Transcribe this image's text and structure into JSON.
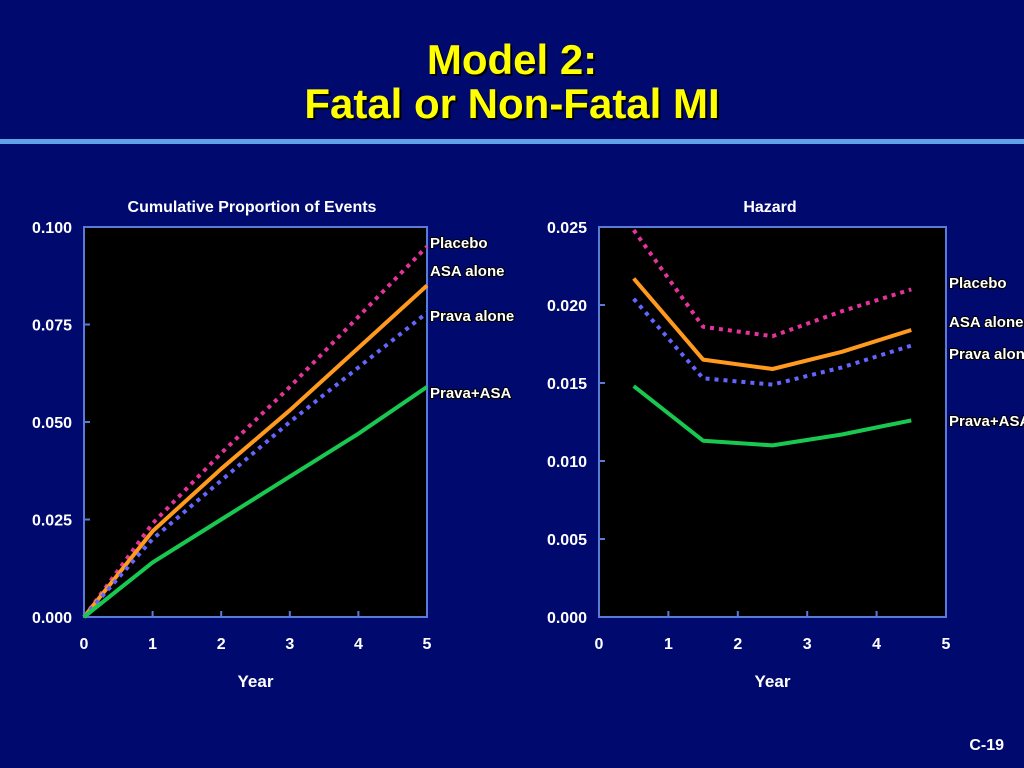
{
  "slide": {
    "title_line1": "Model 2:",
    "title_line2": "Fatal or Non-Fatal MI",
    "footer": "C-19"
  },
  "colors": {
    "background": "#000a6e",
    "plot_background": "#000000",
    "title": "#ffff00",
    "rule": "#5ea2e8",
    "placebo": "#e6329b",
    "asa_alone": "#ff9a1f",
    "prava_alone": "#6464ff",
    "prava_asa": "#19c850"
  },
  "chart_data": [
    {
      "type": "line",
      "title": "Cumulative Proportion of Events",
      "xlabel": "Year",
      "ylabel": "",
      "xlim": [
        0,
        5
      ],
      "ylim": [
        0,
        0.1
      ],
      "x_ticks": [
        "0",
        "1",
        "2",
        "3",
        "4",
        "5"
      ],
      "y_ticks": [
        "0.000",
        "0.025",
        "0.050",
        "0.075",
        "0.100"
      ],
      "series": [
        {
          "name": "Placebo",
          "color_key": "placebo",
          "dash": true,
          "x": [
            0,
            1,
            2,
            3,
            4,
            5
          ],
          "y": [
            0,
            0.024,
            0.042,
            0.059,
            0.077,
            0.095
          ]
        },
        {
          "name": "ASA alone",
          "color_key": "asa_alone",
          "dash": false,
          "x": [
            0,
            1,
            2,
            3,
            4,
            5
          ],
          "y": [
            0,
            0.022,
            0.038,
            0.053,
            0.069,
            0.085
          ]
        },
        {
          "name": "Prava alone",
          "color_key": "prava_alone",
          "dash": true,
          "x": [
            0,
            1,
            2,
            3,
            4,
            5
          ],
          "y": [
            0,
            0.02,
            0.035,
            0.05,
            0.064,
            0.078
          ]
        },
        {
          "name": "Prava+ASA",
          "color_key": "prava_asa",
          "dash": false,
          "x": [
            0,
            1,
            2,
            3,
            4,
            5
          ],
          "y": [
            0,
            0.014,
            0.025,
            0.036,
            0.047,
            0.059
          ]
        }
      ],
      "legend": "right"
    },
    {
      "type": "line",
      "title": "Hazard",
      "xlabel": "Year",
      "ylabel": "",
      "xlim": [
        0,
        5
      ],
      "ylim": [
        0,
        0.025
      ],
      "x_ticks": [
        "0",
        "1",
        "2",
        "3",
        "4",
        "5"
      ],
      "y_ticks": [
        "0.000",
        "0.005",
        "0.010",
        "0.015",
        "0.020",
        "0.025"
      ],
      "series": [
        {
          "name": "Placebo",
          "color_key": "placebo",
          "dash": true,
          "x": [
            0.5,
            1.5,
            2.5,
            3.5,
            4.5
          ],
          "y": [
            0.0248,
            0.0186,
            0.018,
            0.0196,
            0.021
          ]
        },
        {
          "name": "ASA alone",
          "color_key": "asa_alone",
          "dash": false,
          "x": [
            0.5,
            1.5,
            2.5,
            3.5,
            4.5
          ],
          "y": [
            0.0217,
            0.0165,
            0.0159,
            0.017,
            0.0184
          ]
        },
        {
          "name": "Prava alone",
          "color_key": "prava_alone",
          "dash": true,
          "x": [
            0.5,
            1.5,
            2.5,
            3.5,
            4.5
          ],
          "y": [
            0.0204,
            0.0153,
            0.0149,
            0.016,
            0.0174
          ]
        },
        {
          "name": "Prava+ASA",
          "color_key": "prava_asa",
          "dash": false,
          "x": [
            0.5,
            1.5,
            2.5,
            3.5,
            4.5
          ],
          "y": [
            0.0148,
            0.0113,
            0.011,
            0.0117,
            0.0126
          ]
        }
      ],
      "legend": "right"
    }
  ]
}
